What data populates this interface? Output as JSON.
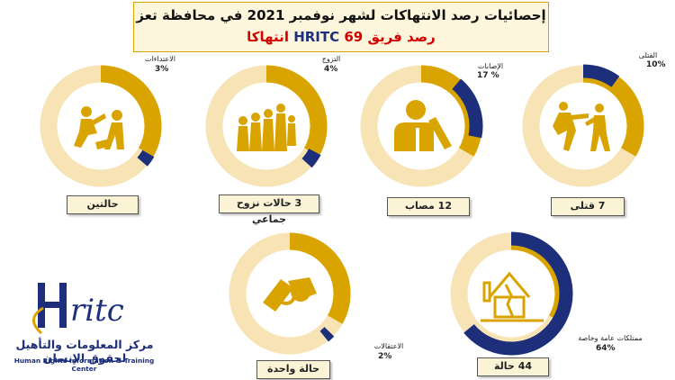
{
  "header": {
    "title": "إحصائيات رصد الانتهاكات لشهر نوفمبر 2021 في محافظة تعز",
    "subtitle_prefix": "رصد فريق",
    "subtitle_org": "HRITC",
    "subtitle_count": "69",
    "subtitle_suffix": "انتهاكا"
  },
  "chart_data": {
    "type": "pie",
    "categories": [
      "القتلى",
      "الإصابات",
      "التزوج",
      "الاعتداءات",
      "ممتلكات عامة وخاصة",
      "الاعتقالات"
    ],
    "values": [
      10,
      17,
      4,
      3,
      64,
      2
    ],
    "counts_text": [
      "7 قتلى",
      "12 مصاب",
      "3 حالات نزوح جماعي",
      "حالتين",
      "44 حالة",
      "حالة واحدة"
    ]
  },
  "donuts": [
    {
      "label": "القتلى",
      "percent": "10%",
      "count": "7 قتلى",
      "icon": "fight-icon",
      "fraction": 0.1
    },
    {
      "label": "الإصابات",
      "percent": "17 %",
      "count": "12 مصاب",
      "icon": "injured-person-icon",
      "fraction": 0.17
    },
    {
      "label": "التزوج",
      "percent": "4%",
      "count": "3 حالات نزوح جماعي",
      "icon": "displaced-people-icon",
      "fraction": 0.04
    },
    {
      "label": "الاعتداءات",
      "percent": "3%",
      "count": "حالتين",
      "icon": "assault-icon",
      "fraction": 0.03
    },
    {
      "label": "ممتلكات عامة وخاصة",
      "percent": "64%",
      "count": "44 حالة",
      "icon": "damaged-house-icon",
      "fraction": 0.64
    },
    {
      "label": "الاعتقالات",
      "percent": "2%",
      "count": "حالة واحدة",
      "icon": "handcuffs-icon",
      "fraction": 0.02
    }
  ],
  "logo": {
    "mark": "Hritc",
    "arabic": "مركز المعلومات والتأهيل لحقوق الإنسان",
    "english": "Human Rights Information & Training Center"
  },
  "colors": {
    "navy": "#1d2f7a",
    "gold": "#d9a400",
    "light_gold": "#f7e3b4",
    "red": "#d00000"
  }
}
